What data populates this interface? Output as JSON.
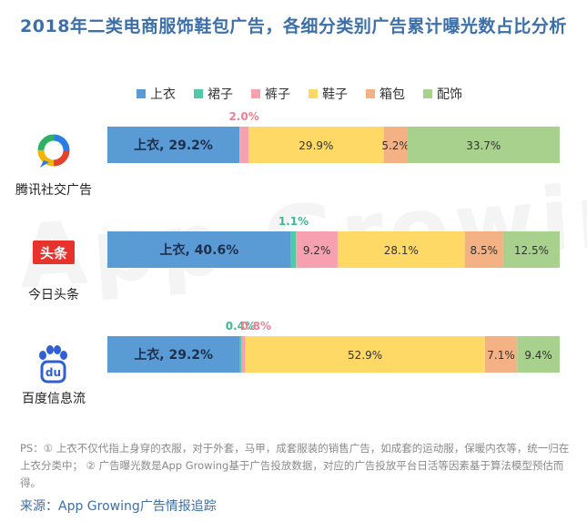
{
  "title": "2018年二类电商服饰鞋包广告，各细分类别广告累计曝光数占比分析",
  "watermark": "App Growing",
  "ps_text": "PS：① 上衣不仅代指上身穿的衣服，对于外套，马甲，成套服装的销售广告，如成套的运动服，保暖内衣等，统一归在上衣分类中；  ② 广告曝光数是App Growing基于广告投放数据，对应的广告投放平台日活等因素基于算法模型预估而得。",
  "source": "来源：App Growing广告情报追踪",
  "logos": {
    "toutiao_text": "头条",
    "baidu_text": "du"
  },
  "chart_data": {
    "type": "bar",
    "orientation": "horizontal",
    "stacked": true,
    "normalized": true,
    "legend_position": "top",
    "grid": false,
    "categories": [
      "腾讯社交广告",
      "今日头条",
      "百度信息流"
    ],
    "series": [
      {
        "name": "上衣",
        "color": "#5b9bd5",
        "values": [
          29.2,
          40.6,
          29.2
        ],
        "labels": [
          "上衣, 29.2%",
          "上衣, 40.6%",
          "上衣, 29.2%"
        ]
      },
      {
        "name": "裙子",
        "color": "#4fc9a6",
        "values": [
          0,
          1.1,
          0.4
        ],
        "labels": [
          "",
          "1.1%",
          "0.4%"
        ]
      },
      {
        "name": "裤子",
        "color": "#f7a1b0",
        "values": [
          2.0,
          9.2,
          0.8
        ],
        "labels": [
          "2.0%",
          "9.2%",
          "0.8%"
        ]
      },
      {
        "name": "鞋子",
        "color": "#ffd966",
        "values": [
          29.9,
          28.1,
          52.9
        ],
        "labels": [
          "29.9%",
          "28.1%",
          "52.9%"
        ]
      },
      {
        "name": "箱包",
        "color": "#f4b183",
        "values": [
          5.2,
          8.5,
          7.1
        ],
        "labels": [
          "5.2%",
          "8.5%",
          "7.1%"
        ]
      },
      {
        "name": "配饰",
        "color": "#a9d18e",
        "values": [
          33.7,
          12.5,
          9.4
        ],
        "labels": [
          "33.7%",
          "12.5%",
          "9.4%"
        ]
      }
    ]
  }
}
